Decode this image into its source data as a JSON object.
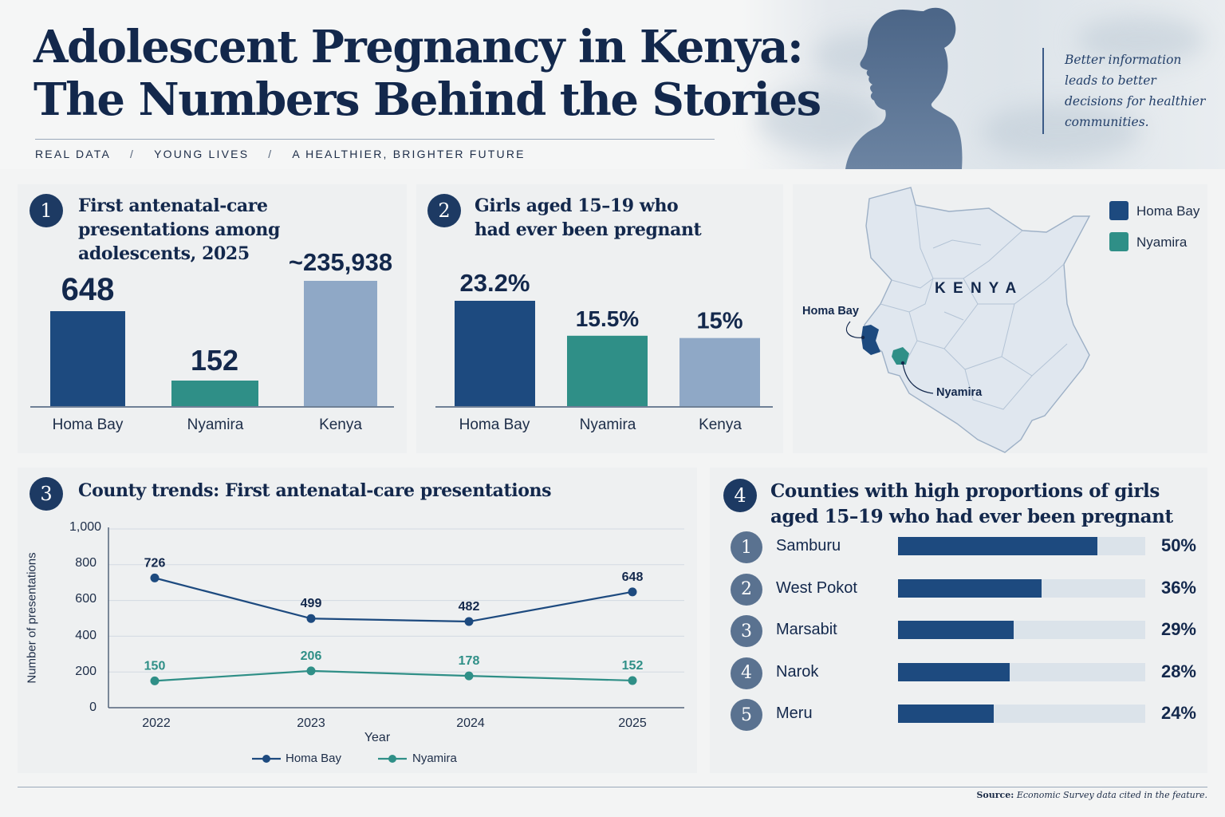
{
  "header": {
    "title_line1": "Adolescent Pregnancy in Kenya:",
    "title_line2": "The Numbers Behind the Stories",
    "tagline": [
      "REAL DATA",
      "YOUNG LIVES",
      "A HEALTHIER, BRIGHTER FUTURE"
    ],
    "tagline_sep": "/",
    "quote": "Better information leads to better decisions for healthier communities."
  },
  "colors": {
    "navy": "#1d4a7f",
    "teal": "#2f8f87",
    "light_blue": "#8fa8c6",
    "dark_text": "#13284c"
  },
  "chart_data": [
    {
      "id": "panel1",
      "number": "1",
      "type": "bar",
      "title": "First antenatal-care presentations among adolescents, 2025",
      "categories": [
        "Homa Bay",
        "Nyamira",
        "Kenya"
      ],
      "values": [
        648,
        152,
        235938
      ],
      "value_labels": [
        "648",
        "152",
        "~235,938"
      ],
      "note": "bars not drawn to a common scale"
    },
    {
      "id": "panel2",
      "number": "2",
      "type": "bar",
      "title": "Girls aged 15–19 who had ever been pregnant",
      "categories": [
        "Homa Bay",
        "Nyamira",
        "Kenya"
      ],
      "values": [
        23.2,
        15.5,
        15
      ],
      "value_labels": [
        "23.2%",
        "15.5%",
        "15%"
      ]
    },
    {
      "id": "panel3",
      "number": "3",
      "type": "line",
      "title": "County trends: First antenatal-care presentations",
      "xlabel": "Year",
      "ylabel": "Number of presentations",
      "x": [
        "2022",
        "2023",
        "2024",
        "2025"
      ],
      "ylim": [
        0,
        1000
      ],
      "yticks": [
        "0",
        "200",
        "400",
        "600",
        "800",
        "1,000"
      ],
      "grid": true,
      "legend_position": "bottom",
      "series": [
        {
          "name": "Homa Bay",
          "values": [
            726,
            499,
            482,
            648
          ]
        },
        {
          "name": "Nyamira",
          "values": [
            150,
            206,
            178,
            152
          ]
        }
      ]
    },
    {
      "id": "panel4",
      "number": "4",
      "type": "bar",
      "orientation": "horizontal",
      "title": "Counties with high proportions of girls aged 15–19 who had ever been pregnant",
      "ranks": [
        "1",
        "2",
        "3",
        "4",
        "5"
      ],
      "categories": [
        "Samburu",
        "West Pokot",
        "Marsabit",
        "Narok",
        "Meru"
      ],
      "values": [
        50,
        36,
        29,
        28,
        24
      ],
      "value_labels": [
        "50%",
        "36%",
        "29%",
        "28%",
        "24%"
      ],
      "xlim": [
        0,
        100
      ]
    }
  ],
  "map": {
    "country_label": "K E N Y A",
    "legend": [
      {
        "label": "Homa Bay",
        "color": "#1d4a7f"
      },
      {
        "label": "Nyamira",
        "color": "#2f8f87"
      }
    ],
    "callouts": [
      "Homa Bay",
      "Nyamira"
    ]
  },
  "footer": {
    "source_label": "Source:",
    "source_text": "Economic Survey data cited in the feature."
  }
}
